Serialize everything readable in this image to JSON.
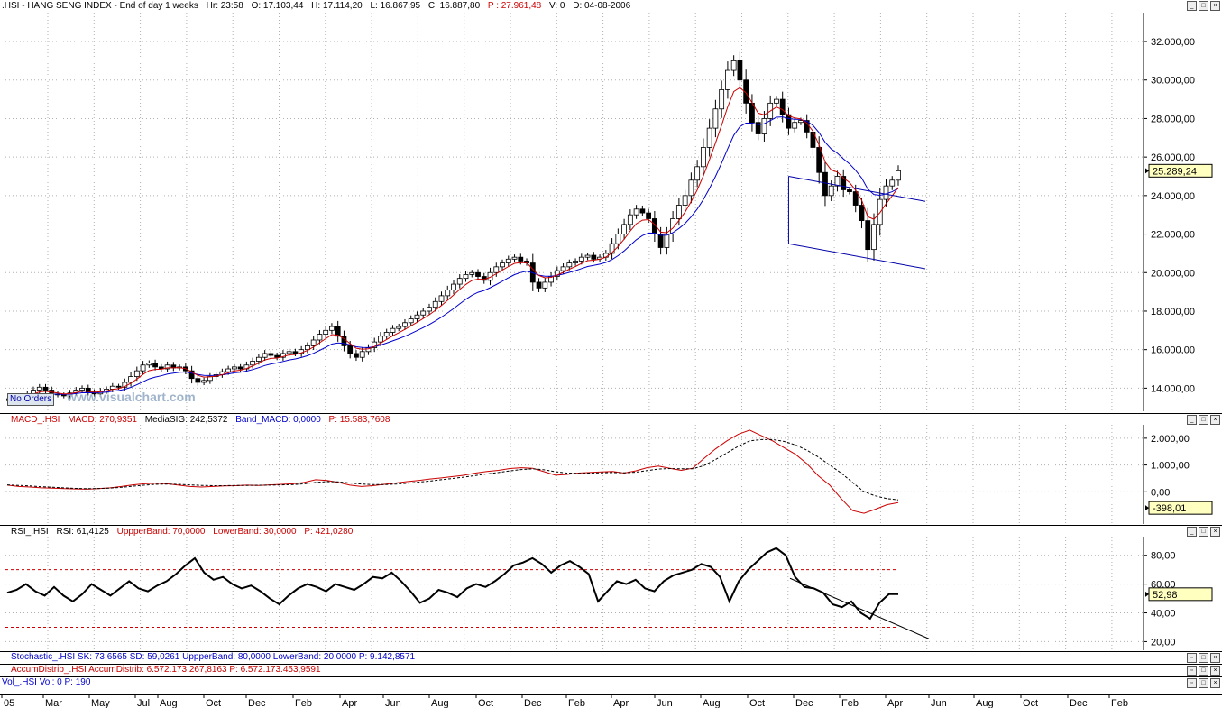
{
  "main_header": {
    "symbol": ".HSI - HANG SENG INDEX - End of day 1 weeks",
    "hr": "Hr: 23:58",
    "open": "O: 17.103,44",
    "high": "H: 17.114,20",
    "low": "L: 16.867,95",
    "close": "C: 16.887,80",
    "p": "P : 27.961,48",
    "v": "V: 0",
    "d": "D: 04-08-2006"
  },
  "watermark": "www.visualchart.com",
  "no_orders": "No Orders",
  "macd_header": {
    "name": "MACD_.HSI",
    "macd": "MACD: 270,9351",
    "sig": "MediaSIG: 242,5372",
    "band": "Band_MACD: 0,0000",
    "p": "P: 15.583,7608"
  },
  "rsi_header": {
    "name": "RSI_.HSI",
    "rsi": "RSI: 61,4125",
    "upper": "UppperBand: 70,0000",
    "lower": "LowerBand: 30,0000",
    "p": "P: 421,0280"
  },
  "stoch_header": "Stochastic_.HSI  SK: 73,6565  SD: 59,0261  UppperBand: 80,0000  LowerBand: 20,0000  P: 9.142,8571",
  "accum_header": "AccumDistrib_.HSI  AccumDistrib: 6.572.173.267,8163  P: 6.572.173.453,9591",
  "vol_header": "Vol_.HSI  Vol: 0  P: 190",
  "colors": {
    "bull": "#ffffff",
    "bear": "#000000",
    "ma_fast": "#cc0000",
    "ma_slow": "#0000cc",
    "grid": "#b0b0b0",
    "band": "#cc0000"
  },
  "chart_data": [
    {
      "type": "candlestick",
      "title": ".HSI - HANG SENG INDEX",
      "y_ticks": [
        "14.000,00",
        "16.000,00",
        "18.000,00",
        "20.000,00",
        "22.000,00",
        "24.000,00",
        "26.000,00",
        "28.000,00",
        "30.000,00",
        "32.000,00"
      ],
      "y_tick_values": [
        14000,
        16000,
        18000,
        20000,
        22000,
        24000,
        26000,
        28000,
        30000,
        32000
      ],
      "ylim": [
        12800,
        33500
      ],
      "last_value_label": "25.289,24",
      "last_value": 25289.24,
      "closes": [
        13450,
        13550,
        13600,
        13700,
        13900,
        14050,
        13900,
        13700,
        13650,
        13600,
        13750,
        13900,
        14000,
        13800,
        13700,
        13850,
        13950,
        14100,
        14050,
        14300,
        14600,
        14900,
        15200,
        15300,
        15100,
        15000,
        15200,
        15050,
        15100,
        14900,
        14500,
        14300,
        14400,
        14600,
        14700,
        14850,
        15000,
        15100,
        15000,
        15200,
        15400,
        15600,
        15800,
        15700,
        15600,
        15800,
        15900,
        15800,
        16000,
        16200,
        16500,
        16800,
        17000,
        17200,
        16700,
        16200,
        15800,
        15600,
        15900,
        16100,
        16400,
        16700,
        16900,
        17100,
        17200,
        17400,
        17600,
        17800,
        18000,
        18200,
        18500,
        18800,
        19100,
        19400,
        19700,
        19900,
        20000,
        19800,
        19600,
        20000,
        20300,
        20500,
        20700,
        20800,
        20600,
        20500,
        19500,
        19200,
        19500,
        19800,
        20100,
        20300,
        20500,
        20600,
        20800,
        20900,
        20700,
        20800,
        21000,
        21500,
        22000,
        22500,
        23000,
        23300,
        23100,
        22800,
        22000,
        21300,
        22000,
        22800,
        23500,
        24000,
        24800,
        25500,
        26500,
        27500,
        28500,
        29500,
        30500,
        31000,
        30000,
        28800,
        27800,
        27200,
        28000,
        28800,
        29000,
        28200,
        27500,
        27800,
        27900,
        27300,
        26500,
        25200,
        24000,
        24500,
        25000,
        24300,
        24200,
        23500,
        22700,
        21200,
        22500,
        23800,
        24500,
        24800,
        25289
      ]
    },
    {
      "type": "line",
      "title": "MACD_.HSI",
      "y_ticks": [
        "0,00",
        "1.000,00",
        "2.000,00"
      ],
      "y_tick_values": [
        0,
        1000,
        2000
      ],
      "ylim": [
        -1200,
        2500
      ],
      "last_value_label": "-398,01",
      "series": [
        {
          "name": "MACD",
          "values": [
            250,
            200,
            180,
            150,
            140,
            120,
            110,
            100,
            120,
            150,
            200,
            260,
            300,
            320,
            300,
            250,
            200,
            180,
            200,
            220,
            230,
            250,
            240,
            260,
            280,
            300,
            350,
            450,
            420,
            350,
            250,
            200,
            230,
            280,
            330,
            380,
            420,
            480,
            520,
            570,
            620,
            700,
            760,
            800,
            870,
            900,
            880,
            750,
            620,
            650,
            700,
            720,
            740,
            760,
            700,
            780,
            900,
            960,
            880,
            800,
            880,
            1250,
            1600,
            1900,
            2150,
            2300,
            2100,
            1900,
            1650,
            1400,
            1050,
            600,
            250,
            -250,
            -700,
            -800,
            -650,
            -480,
            -398
          ]
        },
        {
          "name": "MediaSIG",
          "values": [
            260,
            240,
            220,
            190,
            170,
            150,
            130,
            120,
            125,
            140,
            170,
            210,
            250,
            280,
            290,
            280,
            260,
            240,
            230,
            230,
            235,
            240,
            245,
            250,
            260,
            270,
            300,
            350,
            380,
            370,
            330,
            290,
            270,
            270,
            290,
            320,
            360,
            400,
            450,
            500,
            550,
            610,
            670,
            720,
            780,
            830,
            860,
            820,
            750,
            700,
            690,
            700,
            710,
            720,
            710,
            730,
            790,
            850,
            870,
            860,
            860,
            980,
            1200,
            1450,
            1700,
            1900,
            1950,
            1950,
            1880,
            1750,
            1550,
            1300,
            1000,
            700,
            350,
            0,
            -150,
            -250,
            -300
          ]
        }
      ]
    },
    {
      "type": "line",
      "title": "RSI_.HSI",
      "y_ticks": [
        "20,00",
        "40,00",
        "60,00",
        "80,00"
      ],
      "y_tick_values": [
        20,
        40,
        60,
        80
      ],
      "ylim": [
        14,
        93
      ],
      "last_value_label": "52,98",
      "upper_band": 70,
      "lower_band": 30,
      "values": [
        54,
        56,
        60,
        55,
        52,
        58,
        52,
        48,
        53,
        60,
        56,
        52,
        57,
        62,
        57,
        55,
        59,
        62,
        67,
        73,
        78,
        68,
        63,
        65,
        60,
        57,
        59,
        55,
        50,
        46,
        52,
        57,
        60,
        58,
        55,
        60,
        58,
        56,
        60,
        65,
        64,
        68,
        62,
        55,
        47,
        50,
        56,
        54,
        51,
        57,
        60,
        58,
        62,
        67,
        73,
        75,
        78,
        74,
        68,
        73,
        76,
        72,
        67,
        48,
        55,
        62,
        60,
        63,
        57,
        55,
        62,
        66,
        68,
        70,
        74,
        72,
        65,
        48,
        62,
        70,
        76,
        82,
        85,
        80,
        65,
        58,
        57,
        54,
        46,
        44,
        48,
        40,
        36,
        47,
        53,
        53
      ]
    }
  ],
  "months": [
    "05",
    "Mar",
    "May",
    "Jul",
    "Aug",
    "Oct",
    "Dec",
    "Feb",
    "Apr",
    "Jun",
    "Aug",
    "Oct",
    "Dec",
    "Feb",
    "Apr",
    "Jun",
    "Aug",
    "Oct",
    "Dec",
    "Feb",
    "Apr",
    "Jun",
    "Aug",
    "Oct",
    "Dec",
    "Feb"
  ]
}
